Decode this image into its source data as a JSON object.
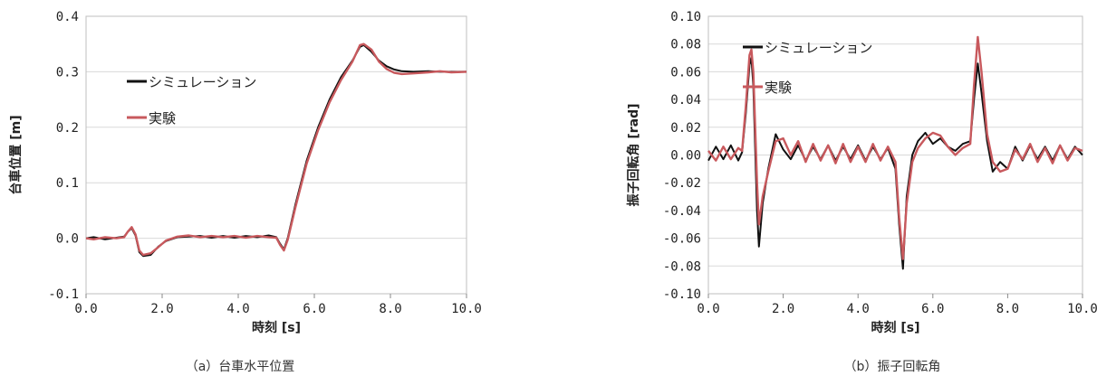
{
  "chart_data": [
    {
      "type": "line",
      "caption": "（a）台車水平位置",
      "xlabel": "時刻 [s]",
      "ylabel": "台車位置 [m]",
      "xlim": [
        0,
        10
      ],
      "ylim": [
        -0.1,
        0.4
      ],
      "xticks": [
        0,
        2,
        4,
        6,
        8,
        10
      ],
      "xtick_labels": [
        "0.0",
        "2.0",
        "4.0",
        "6.0",
        "8.0",
        "10.0"
      ],
      "yticks": [
        -0.1,
        0,
        0.1,
        0.2,
        0.3,
        0.4
      ],
      "ytick_labels": [
        "-0.1",
        "0.0",
        "0.1",
        "0.2",
        "0.3",
        "0.4"
      ],
      "grid": "horizontal",
      "legend_position": "upper-left",
      "series": [
        {
          "name": "シミュレーション",
          "color": "#111111",
          "points": [
            [
              0,
              0
            ],
            [
              0.2,
              0.002
            ],
            [
              0.5,
              -0.002
            ],
            [
              0.8,
              0.001
            ],
            [
              1.0,
              0.003
            ],
            [
              1.1,
              0.012
            ],
            [
              1.2,
              0.018
            ],
            [
              1.3,
              0.005
            ],
            [
              1.4,
              -0.025
            ],
            [
              1.5,
              -0.032
            ],
            [
              1.7,
              -0.03
            ],
            [
              1.9,
              -0.015
            ],
            [
              2.1,
              -0.005
            ],
            [
              2.4,
              0.002
            ],
            [
              2.7,
              0.003
            ],
            [
              3.0,
              0.004
            ],
            [
              3.3,
              0.001
            ],
            [
              3.6,
              0.004
            ],
            [
              3.9,
              0.001
            ],
            [
              4.2,
              0.004
            ],
            [
              4.5,
              0.002
            ],
            [
              4.8,
              0.005
            ],
            [
              5.0,
              0.002
            ],
            [
              5.1,
              -0.01
            ],
            [
              5.2,
              -0.02
            ],
            [
              5.3,
              0.0
            ],
            [
              5.5,
              0.06
            ],
            [
              5.8,
              0.14
            ],
            [
              6.1,
              0.2
            ],
            [
              6.4,
              0.25
            ],
            [
              6.7,
              0.29
            ],
            [
              7.0,
              0.32
            ],
            [
              7.2,
              0.345
            ],
            [
              7.3,
              0.348
            ],
            [
              7.5,
              0.336
            ],
            [
              7.7,
              0.32
            ],
            [
              7.9,
              0.31
            ],
            [
              8.1,
              0.304
            ],
            [
              8.3,
              0.301
            ],
            [
              8.6,
              0.3
            ],
            [
              9.0,
              0.301
            ],
            [
              9.3,
              0.3
            ],
            [
              9.6,
              0.3
            ],
            [
              10.0,
              0.3
            ]
          ]
        },
        {
          "name": "実験",
          "color": "#c8595d",
          "points": [
            [
              0,
              0
            ],
            [
              0.2,
              -0.002
            ],
            [
              0.5,
              0.002
            ],
            [
              0.8,
              0.0
            ],
            [
              1.0,
              0.002
            ],
            [
              1.1,
              0.012
            ],
            [
              1.2,
              0.02
            ],
            [
              1.3,
              0.007
            ],
            [
              1.4,
              -0.022
            ],
            [
              1.5,
              -0.03
            ],
            [
              1.7,
              -0.027
            ],
            [
              1.9,
              -0.016
            ],
            [
              2.1,
              -0.004
            ],
            [
              2.4,
              0.003
            ],
            [
              2.7,
              0.005
            ],
            [
              3.0,
              0.002
            ],
            [
              3.3,
              0.004
            ],
            [
              3.6,
              0.002
            ],
            [
              3.9,
              0.004
            ],
            [
              4.2,
              0.001
            ],
            [
              4.5,
              0.004
            ],
            [
              4.8,
              0.002
            ],
            [
              5.0,
              0.001
            ],
            [
              5.1,
              -0.012
            ],
            [
              5.2,
              -0.022
            ],
            [
              5.3,
              -0.003
            ],
            [
              5.5,
              0.055
            ],
            [
              5.8,
              0.135
            ],
            [
              6.1,
              0.195
            ],
            [
              6.4,
              0.245
            ],
            [
              6.7,
              0.285
            ],
            [
              7.0,
              0.318
            ],
            [
              7.2,
              0.348
            ],
            [
              7.3,
              0.35
            ],
            [
              7.5,
              0.34
            ],
            [
              7.7,
              0.318
            ],
            [
              7.9,
              0.305
            ],
            [
              8.1,
              0.298
            ],
            [
              8.3,
              0.296
            ],
            [
              8.6,
              0.297
            ],
            [
              9.0,
              0.299
            ],
            [
              9.3,
              0.301
            ],
            [
              9.6,
              0.299
            ],
            [
              10.0,
              0.3
            ]
          ]
        }
      ]
    },
    {
      "type": "line",
      "caption": "（b）振子回転角",
      "xlabel": "時刻 [s]",
      "ylabel": "振子回転角 [rad]",
      "xlim": [
        0,
        10
      ],
      "ylim": [
        -0.1,
        0.1
      ],
      "xticks": [
        0,
        2,
        4,
        6,
        8,
        10
      ],
      "xtick_labels": [
        "0.0",
        "2.0",
        "4.0",
        "6.0",
        "8.0",
        "10.0"
      ],
      "yticks": [
        -0.1,
        -0.08,
        -0.06,
        -0.04,
        -0.02,
        0,
        0.02,
        0.04,
        0.06,
        0.08,
        0.1
      ],
      "ytick_labels": [
        "-0.10",
        "-0.08",
        "-0.06",
        "-0.04",
        "-0.02",
        "0.00",
        "0.02",
        "0.04",
        "0.06",
        "0.08",
        "0.10"
      ],
      "grid": "horizontal",
      "legend_position": "upper-left",
      "series": [
        {
          "name": "シミュレーション",
          "color": "#111111",
          "points": [
            [
              0,
              -0.004
            ],
            [
              0.2,
              0.006
            ],
            [
              0.4,
              -0.003
            ],
            [
              0.6,
              0.007
            ],
            [
              0.8,
              -0.004
            ],
            [
              0.9,
              0.002
            ],
            [
              1.0,
              0.03
            ],
            [
              1.1,
              0.065
            ],
            [
              1.15,
              0.07
            ],
            [
              1.2,
              0.05
            ],
            [
              1.3,
              -0.04
            ],
            [
              1.35,
              -0.066
            ],
            [
              1.45,
              -0.035
            ],
            [
              1.6,
              -0.01
            ],
            [
              1.8,
              0.015
            ],
            [
              2.0,
              0.004
            ],
            [
              2.2,
              -0.003
            ],
            [
              2.4,
              0.007
            ],
            [
              2.6,
              -0.004
            ],
            [
              2.8,
              0.006
            ],
            [
              3.0,
              -0.003
            ],
            [
              3.2,
              0.007
            ],
            [
              3.4,
              -0.004
            ],
            [
              3.6,
              0.006
            ],
            [
              3.8,
              -0.003
            ],
            [
              4.0,
              0.007
            ],
            [
              4.2,
              -0.004
            ],
            [
              4.4,
              0.006
            ],
            [
              4.6,
              -0.003
            ],
            [
              4.8,
              0.005
            ],
            [
              5.0,
              -0.01
            ],
            [
              5.1,
              -0.05
            ],
            [
              5.2,
              -0.082
            ],
            [
              5.3,
              -0.03
            ],
            [
              5.45,
              0.0
            ],
            [
              5.6,
              0.01
            ],
            [
              5.8,
              0.016
            ],
            [
              6.0,
              0.008
            ],
            [
              6.2,
              0.012
            ],
            [
              6.4,
              0.006
            ],
            [
              6.6,
              0.003
            ],
            [
              6.8,
              0.008
            ],
            [
              7.0,
              0.01
            ],
            [
              7.1,
              0.04
            ],
            [
              7.2,
              0.066
            ],
            [
              7.3,
              0.045
            ],
            [
              7.45,
              0.01
            ],
            [
              7.6,
              -0.012
            ],
            [
              7.8,
              -0.005
            ],
            [
              8.0,
              -0.01
            ],
            [
              8.2,
              0.006
            ],
            [
              8.4,
              -0.004
            ],
            [
              8.6,
              0.007
            ],
            [
              8.8,
              -0.003
            ],
            [
              9.0,
              0.006
            ],
            [
              9.2,
              -0.004
            ],
            [
              9.4,
              0.007
            ],
            [
              9.6,
              -0.003
            ],
            [
              9.8,
              0.006
            ],
            [
              10.0,
              0.0
            ]
          ]
        },
        {
          "name": "実験",
          "color": "#c8595d",
          "points": [
            [
              0,
              0.003
            ],
            [
              0.2,
              -0.004
            ],
            [
              0.4,
              0.006
            ],
            [
              0.6,
              -0.003
            ],
            [
              0.8,
              0.005
            ],
            [
              0.9,
              0.003
            ],
            [
              1.0,
              0.035
            ],
            [
              1.1,
              0.072
            ],
            [
              1.15,
              0.076
            ],
            [
              1.2,
              0.06
            ],
            [
              1.3,
              -0.02
            ],
            [
              1.35,
              -0.05
            ],
            [
              1.45,
              -0.03
            ],
            [
              1.6,
              -0.012
            ],
            [
              1.8,
              0.01
            ],
            [
              2.0,
              0.012
            ],
            [
              2.2,
              0.0
            ],
            [
              2.4,
              0.01
            ],
            [
              2.6,
              -0.005
            ],
            [
              2.8,
              0.008
            ],
            [
              3.0,
              -0.004
            ],
            [
              3.2,
              0.007
            ],
            [
              3.4,
              -0.006
            ],
            [
              3.6,
              0.008
            ],
            [
              3.8,
              -0.005
            ],
            [
              4.0,
              0.006
            ],
            [
              4.2,
              -0.005
            ],
            [
              4.4,
              0.008
            ],
            [
              4.6,
              -0.004
            ],
            [
              4.8,
              0.006
            ],
            [
              5.0,
              -0.005
            ],
            [
              5.1,
              -0.045
            ],
            [
              5.2,
              -0.075
            ],
            [
              5.3,
              -0.035
            ],
            [
              5.45,
              -0.005
            ],
            [
              5.6,
              0.005
            ],
            [
              5.8,
              0.012
            ],
            [
              6.0,
              0.016
            ],
            [
              6.2,
              0.014
            ],
            [
              6.4,
              0.006
            ],
            [
              6.6,
              0.0
            ],
            [
              6.8,
              0.005
            ],
            [
              7.0,
              0.008
            ],
            [
              7.1,
              0.05
            ],
            [
              7.2,
              0.085
            ],
            [
              7.3,
              0.06
            ],
            [
              7.45,
              0.015
            ],
            [
              7.6,
              -0.005
            ],
            [
              7.8,
              -0.012
            ],
            [
              8.0,
              -0.01
            ],
            [
              8.2,
              0.004
            ],
            [
              8.4,
              -0.003
            ],
            [
              8.6,
              0.008
            ],
            [
              8.8,
              -0.005
            ],
            [
              9.0,
              0.005
            ],
            [
              9.2,
              -0.006
            ],
            [
              9.4,
              0.007
            ],
            [
              9.6,
              -0.004
            ],
            [
              9.8,
              0.005
            ],
            [
              10.0,
              0.003
            ]
          ]
        }
      ]
    }
  ]
}
